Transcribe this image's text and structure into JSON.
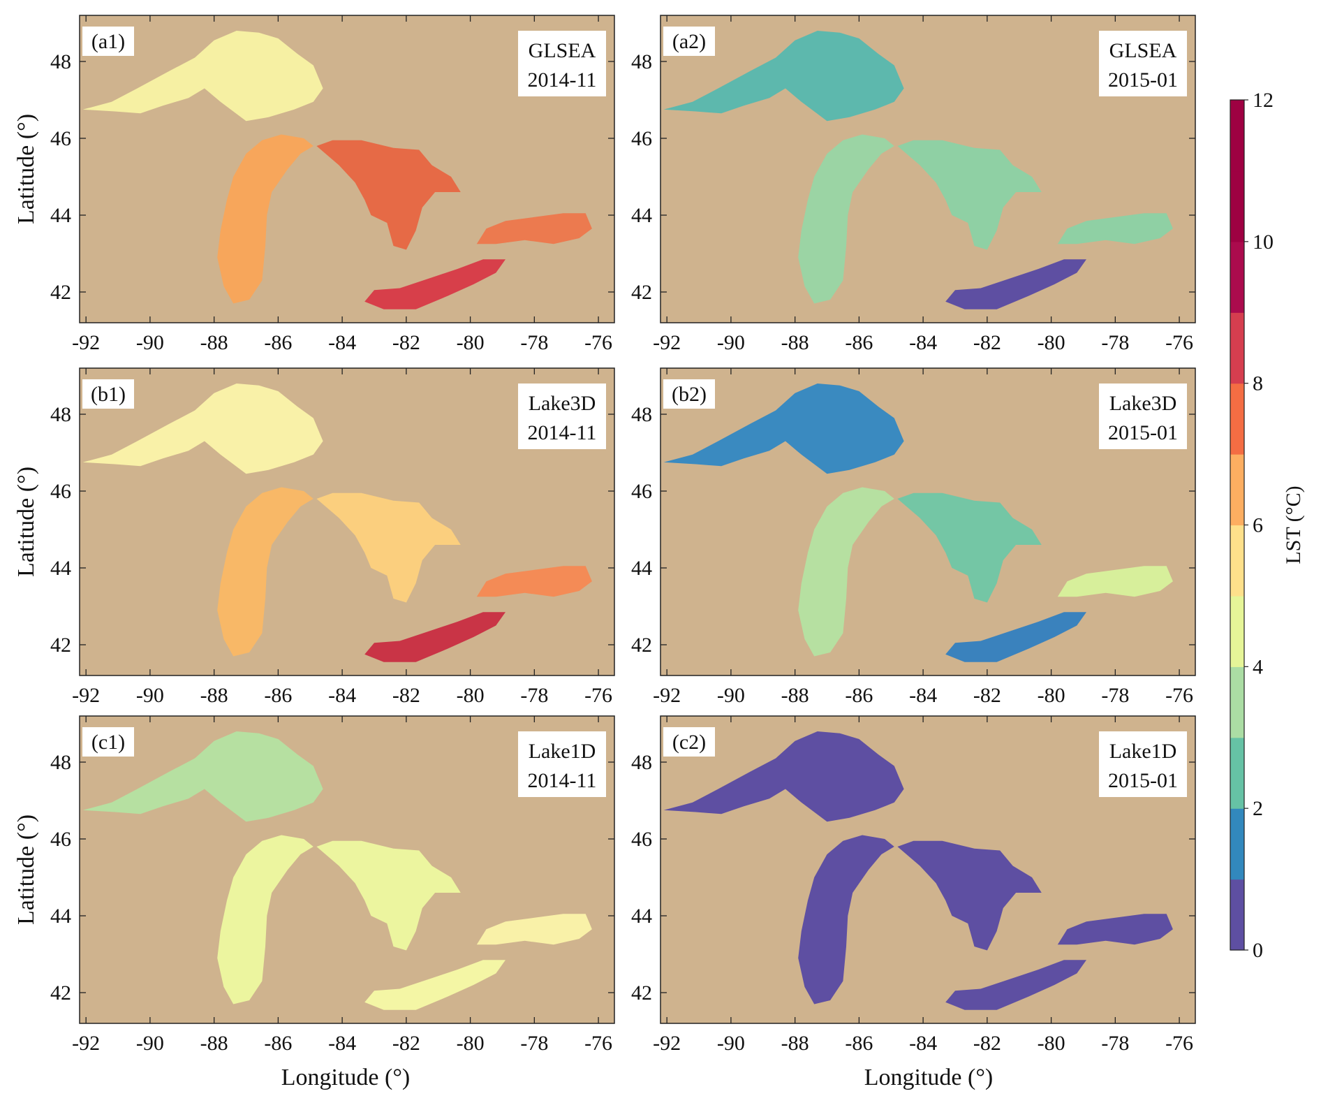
{
  "figure": {
    "background_color": "#cfb38e",
    "land_label": "",
    "x_ticks": [
      "-92",
      "-90",
      "-88",
      "-86",
      "-84",
      "-82",
      "-80",
      "-78",
      "-76"
    ],
    "y_ticks": [
      "48",
      "46",
      "44",
      "42"
    ],
    "x_axis_title": "Longitude (°)",
    "y_axis_title": "Latitude (°)",
    "panels": [
      {
        "tag": "(a1)",
        "source": "GLSEA",
        "date": "2014-11",
        "lake_colors": {
          "superior": "#f6f0a3",
          "michigan": "#f7a65b",
          "huron": "#e66a46",
          "erie": "#d73f4a",
          "ontario": "#ec7a4f"
        }
      },
      {
        "tag": "(a2)",
        "source": "GLSEA",
        "date": "2015-01",
        "lake_colors": {
          "superior": "#5db8ad",
          "michigan": "#9bd4a4",
          "huron": "#8fd0a4",
          "erie": "#5e4fa2",
          "ontario": "#8fd0a4"
        }
      },
      {
        "tag": "(b1)",
        "source": "Lake3D",
        "date": "2014-11",
        "lake_colors": {
          "superior": "#f9f1a8",
          "michigan": "#f8b867",
          "huron": "#fbcf7e",
          "erie": "#c93446",
          "ontario": "#f48b56"
        }
      },
      {
        "tag": "(b2)",
        "source": "Lake3D",
        "date": "2015-01",
        "lake_colors": {
          "superior": "#3a8ac0",
          "michigan": "#b6e0a1",
          "huron": "#74c6a5",
          "erie": "#3a82bd",
          "ontario": "#d7ef9b"
        }
      },
      {
        "tag": "(c1)",
        "source": "Lake1D",
        "date": "2014-11",
        "lake_colors": {
          "superior": "#b6e0a1",
          "michigan": "#ecf59f",
          "huron": "#ecf59f",
          "erie": "#f4f6a5",
          "ontario": "#f9f1a8"
        }
      },
      {
        "tag": "(c2)",
        "source": "Lake1D",
        "date": "2015-01",
        "lake_colors": {
          "superior": "#5e4fa2",
          "michigan": "#5e4fa2",
          "huron": "#5e4fa2",
          "erie": "#5e4fa2",
          "ontario": "#5e4fa2"
        }
      }
    ],
    "colorbar": {
      "label": "LST (°C)",
      "ticks": [
        "0",
        "2",
        "4",
        "6",
        "8",
        "10",
        "12"
      ],
      "colors": [
        "#5e4fa2",
        "#3288bd",
        "#66c2a5",
        "#abdda4",
        "#e6f598",
        "#fee08b",
        "#fdae61",
        "#f46d43",
        "#d53e4f",
        "#ab0b4d",
        "#9e0142",
        "#9e0142"
      ]
    }
  }
}
